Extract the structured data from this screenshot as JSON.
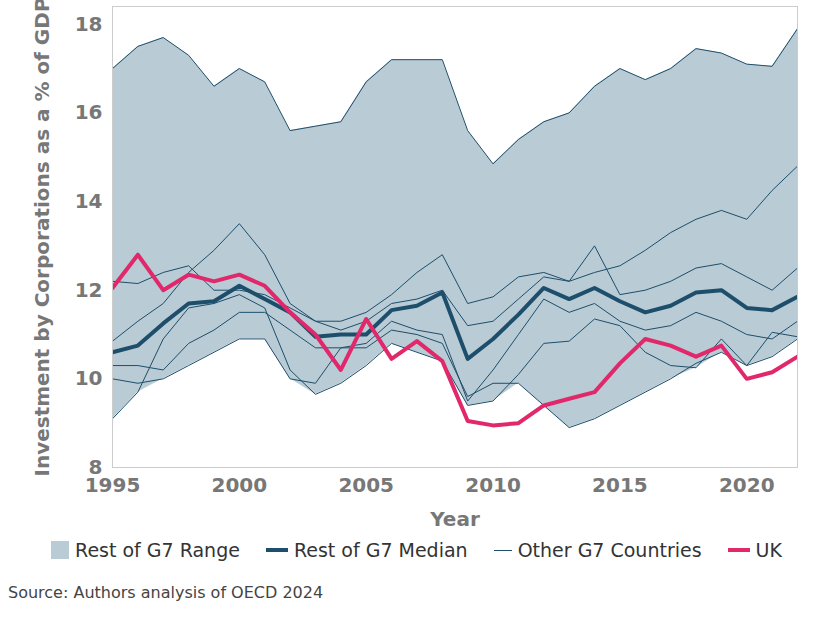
{
  "chart_data": {
    "type": "line",
    "y_label": "Investment by Corporations as a % of GDP",
    "x_label": "Year",
    "source": "Source: Authors analysis of OECD 2024",
    "legend": "bottom",
    "x": [
      1995,
      1996,
      1997,
      1998,
      1999,
      2000,
      2001,
      2002,
      2003,
      2004,
      2005,
      2006,
      2007,
      2008,
      2009,
      2010,
      2011,
      2012,
      2013,
      2014,
      2015,
      2016,
      2017,
      2018,
      2019,
      2020,
      2021,
      2022
    ],
    "xlim": [
      1995,
      2022
    ],
    "xticks": [
      1995,
      2000,
      2005,
      2010,
      2015,
      2020
    ],
    "ylim": [
      8,
      18.4
    ],
    "yticks": [
      8,
      10,
      12,
      14,
      16,
      18
    ],
    "series": [
      {
        "name": "Rest of G7 Range",
        "type": "area",
        "color": "#b9cbd5",
        "lower": [
          9.1,
          9.7,
          10.0,
          10.3,
          10.6,
          10.9,
          10.9,
          10.0,
          9.65,
          9.9,
          10.3,
          10.8,
          10.6,
          10.4,
          9.4,
          9.5,
          9.9,
          9.4,
          8.9,
          9.1,
          9.4,
          9.7,
          10.0,
          10.25,
          10.6,
          10.3,
          10.5,
          10.9
        ],
        "upper": [
          17.0,
          17.5,
          17.7,
          17.3,
          16.6,
          17.0,
          16.7,
          15.6,
          15.7,
          15.8,
          16.7,
          17.2,
          17.2,
          17.2,
          15.6,
          14.85,
          15.4,
          15.8,
          16.0,
          16.6,
          17.0,
          16.75,
          17.0,
          17.45,
          17.35,
          17.1,
          17.05,
          17.9
        ]
      },
      {
        "name": "Other G7 Countries",
        "type": "line",
        "color": "#1d4e6b",
        "lines": [
          [
            17.0,
            17.5,
            17.7,
            17.3,
            16.6,
            17.0,
            16.7,
            15.6,
            15.7,
            15.8,
            16.7,
            17.2,
            17.2,
            17.2,
            15.6,
            14.85,
            15.4,
            15.8,
            16.0,
            16.6,
            17.0,
            16.75,
            17.0,
            17.45,
            17.35,
            17.1,
            17.05,
            17.9
          ],
          [
            10.85,
            11.3,
            11.7,
            12.4,
            12.9,
            13.5,
            12.8,
            11.7,
            11.3,
            11.3,
            11.5,
            11.9,
            12.4,
            12.8,
            11.7,
            11.85,
            12.3,
            12.4,
            12.2,
            12.4,
            12.55,
            12.9,
            13.3,
            13.6,
            13.8,
            13.6,
            14.25,
            14.8
          ],
          [
            12.2,
            12.15,
            12.4,
            12.55,
            12.0,
            12.0,
            11.9,
            11.6,
            11.3,
            11.1,
            11.3,
            11.7,
            11.8,
            12.0,
            11.2,
            11.3,
            11.8,
            12.3,
            12.2,
            13.0,
            11.9,
            12.0,
            12.2,
            12.5,
            12.6,
            12.3,
            12.0,
            12.5
          ],
          [
            9.1,
            9.7,
            10.9,
            11.6,
            11.7,
            11.9,
            11.6,
            10.2,
            9.65,
            9.9,
            10.3,
            10.8,
            10.6,
            10.4,
            9.4,
            9.5,
            10.1,
            10.8,
            10.85,
            11.35,
            11.2,
            10.6,
            10.3,
            10.25,
            10.9,
            10.3,
            11.05,
            10.95
          ],
          [
            10.0,
            9.9,
            10.0,
            10.3,
            10.6,
            10.9,
            10.9,
            10.0,
            9.9,
            10.7,
            10.7,
            11.1,
            11.0,
            10.8,
            9.6,
            9.9,
            9.9,
            9.4,
            8.9,
            9.1,
            9.4,
            9.7,
            10.0,
            10.35,
            10.6,
            10.3,
            10.5,
            10.9
          ],
          [
            10.3,
            10.3,
            10.2,
            10.8,
            11.1,
            11.5,
            11.5,
            11.1,
            10.7,
            10.7,
            10.8,
            11.3,
            11.1,
            11.0,
            9.5,
            10.2,
            11.0,
            11.8,
            11.5,
            11.7,
            11.3,
            11.1,
            11.2,
            11.5,
            11.3,
            11.0,
            10.9,
            11.3
          ]
        ]
      },
      {
        "name": "Rest of G7 Median",
        "type": "line",
        "color": "#1d4e6b",
        "values": [
          10.6,
          10.75,
          11.25,
          11.7,
          11.75,
          12.1,
          11.8,
          11.5,
          10.95,
          11.0,
          11.0,
          11.55,
          11.65,
          11.95,
          10.45,
          10.9,
          11.45,
          12.05,
          11.8,
          12.05,
          11.75,
          11.5,
          11.65,
          11.95,
          12.0,
          11.6,
          11.55,
          11.85
        ]
      },
      {
        "name": "UK",
        "type": "line",
        "color": "#e0286b",
        "values": [
          12.05,
          12.8,
          12.0,
          12.35,
          12.2,
          12.35,
          12.1,
          11.5,
          11.0,
          10.2,
          11.35,
          10.45,
          10.85,
          10.4,
          9.05,
          8.95,
          9.0,
          9.4,
          9.55,
          9.7,
          10.35,
          10.9,
          10.75,
          10.5,
          10.75,
          10.0,
          10.15,
          10.5
        ]
      }
    ],
    "legend_order": [
      "Rest of G7 Range",
      "Rest of G7 Median",
      "Other G7 Countries",
      "UK"
    ]
  }
}
